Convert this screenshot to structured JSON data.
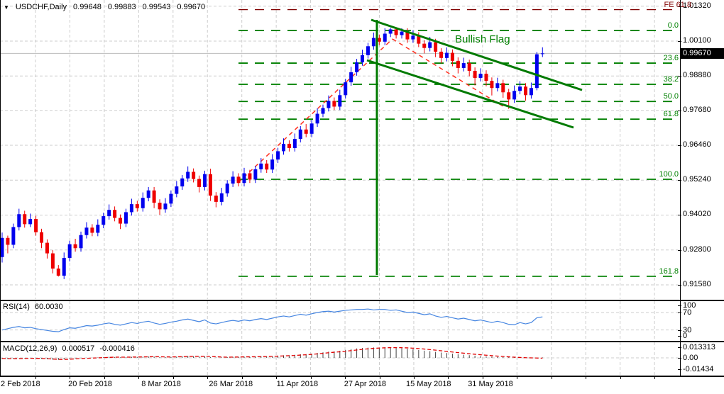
{
  "header": {
    "symbol": "USDCHF,Daily",
    "open": "0.99648",
    "high": "0.99883",
    "low": "0.99543",
    "close": "0.99670"
  },
  "icons": {
    "dropdown": "▼"
  },
  "indicators": {
    "rsi": {
      "label": "RSI(14)",
      "value": "60.0030"
    },
    "macd": {
      "label": "MACD(12,26,9)",
      "value": "0.000517",
      "signal": "-0.000416"
    }
  },
  "annotations": {
    "flag": "Bullish Flag",
    "fe": "FE 61.8"
  },
  "price_axis": {
    "current": "0.99670"
  },
  "colors": {
    "bull": "#0000EE",
    "bear": "#EE0000",
    "grid": "#CDCDCD",
    "fib": "#008000",
    "fe": "#800000",
    "channel": "#007A00",
    "trend": "#FF3020",
    "rsi_line": "#4585E1",
    "macd_bar": "#404040",
    "macd_signal": "#E00000",
    "price_line": "#BBBBBB",
    "tag_bg": "#000000",
    "tag_fg": "#FFFFFF",
    "flag_text": "#008000"
  },
  "chart_data": {
    "type": "candlestick",
    "symbol": "USDCHF",
    "timeframe": "Daily",
    "title": "USDCHF,Daily",
    "current_price": 0.9967,
    "price_axis_ticks": [
      {
        "label": "1.01320",
        "value": 1.0132
      },
      {
        "label": "1.00100",
        "value": 1.001
      },
      {
        "label": "0.98880",
        "value": 0.9888
      },
      {
        "label": "0.97680",
        "value": 0.9768
      },
      {
        "label": "0.96460",
        "value": 0.9646
      },
      {
        "label": "0.95240",
        "value": 0.9524
      },
      {
        "label": "0.94020",
        "value": 0.9402
      },
      {
        "label": "0.92800",
        "value": 0.928
      },
      {
        "label": "0.91580",
        "value": 0.9158
      }
    ],
    "time_axis": [
      {
        "label": "2 Feb 2018",
        "index": 0
      },
      {
        "label": "20 Feb 2018",
        "index": 12
      },
      {
        "label": "8 Mar 2018",
        "index": 25
      },
      {
        "label": "26 Mar 2018",
        "index": 37
      },
      {
        "label": "11 Apr 2018",
        "index": 49
      },
      {
        "label": "27 Apr 2018",
        "index": 61
      },
      {
        "label": "15 May 2018",
        "index": 72
      },
      {
        "label": "31 May 2018",
        "index": 83
      }
    ],
    "fib_levels": [
      {
        "label": "FE 61.8",
        "price": 1.012,
        "type": "expansion"
      },
      {
        "label": "0.0",
        "price": 1.0047
      },
      {
        "label": "23.6",
        "price": 0.9933
      },
      {
        "label": "38.2",
        "price": 0.9859
      },
      {
        "label": "50.0",
        "price": 0.9799
      },
      {
        "label": "61.8",
        "price": 0.9737
      },
      {
        "label": "100.0",
        "price": 0.9527
      },
      {
        "label": "161.8",
        "price": 0.9188
      }
    ],
    "candles": [
      [
        0.9255,
        0.9341,
        0.9236,
        0.9322
      ],
      [
        0.9322,
        0.933,
        0.9268,
        0.9298
      ],
      [
        0.9298,
        0.9372,
        0.9286,
        0.936
      ],
      [
        0.936,
        0.9424,
        0.9348,
        0.9405
      ],
      [
        0.9405,
        0.9417,
        0.9358,
        0.937
      ],
      [
        0.937,
        0.9407,
        0.936,
        0.9388
      ],
      [
        0.9388,
        0.9399,
        0.933,
        0.9342
      ],
      [
        0.9342,
        0.9354,
        0.9286,
        0.9305
      ],
      [
        0.9305,
        0.9317,
        0.925,
        0.9268
      ],
      [
        0.9268,
        0.9279,
        0.9198,
        0.9215
      ],
      [
        0.9215,
        0.9227,
        0.9187,
        0.919
      ],
      [
        0.919,
        0.9271,
        0.9178,
        0.9252
      ],
      [
        0.9252,
        0.9312,
        0.924,
        0.93
      ],
      [
        0.93,
        0.9319,
        0.9274,
        0.9286
      ],
      [
        0.9286,
        0.9344,
        0.9274,
        0.9332
      ],
      [
        0.9332,
        0.9377,
        0.932,
        0.9358
      ],
      [
        0.9358,
        0.937,
        0.9328,
        0.934
      ],
      [
        0.934,
        0.9387,
        0.9328,
        0.9368
      ],
      [
        0.9368,
        0.941,
        0.9356,
        0.9398
      ],
      [
        0.9398,
        0.9439,
        0.9386,
        0.942
      ],
      [
        0.942,
        0.9432,
        0.938,
        0.9392
      ],
      [
        0.9392,
        0.9404,
        0.9353,
        0.9372
      ],
      [
        0.9372,
        0.9424,
        0.936,
        0.9412
      ],
      [
        0.9412,
        0.9459,
        0.94,
        0.944
      ],
      [
        0.944,
        0.9452,
        0.9414,
        0.9426
      ],
      [
        0.9426,
        0.9481,
        0.9414,
        0.9462
      ],
      [
        0.9462,
        0.95,
        0.945,
        0.9488
      ],
      [
        0.9488,
        0.95,
        0.9426,
        0.9445
      ],
      [
        0.9445,
        0.9457,
        0.9403,
        0.9422
      ],
      [
        0.9422,
        0.9461,
        0.941,
        0.9442
      ],
      [
        0.9442,
        0.9488,
        0.943,
        0.9476
      ],
      [
        0.9476,
        0.9521,
        0.9464,
        0.9502
      ],
      [
        0.9502,
        0.9542,
        0.949,
        0.953
      ],
      [
        0.953,
        0.9572,
        0.9518,
        0.9553
      ],
      [
        0.9553,
        0.9565,
        0.9516,
        0.9528
      ],
      [
        0.9528,
        0.954,
        0.9481,
        0.95
      ],
      [
        0.95,
        0.9557,
        0.9488,
        0.9545
      ],
      [
        0.9545,
        0.9564,
        0.9451,
        0.947
      ],
      [
        0.947,
        0.9482,
        0.9429,
        0.9448
      ],
      [
        0.9448,
        0.9497,
        0.9436,
        0.9478
      ],
      [
        0.9478,
        0.9524,
        0.9466,
        0.9512
      ],
      [
        0.9512,
        0.9555,
        0.95,
        0.9536
      ],
      [
        0.9536,
        0.9548,
        0.9502,
        0.9514
      ],
      [
        0.9514,
        0.9567,
        0.9502,
        0.9548
      ],
      [
        0.9548,
        0.956,
        0.9514,
        0.9526
      ],
      [
        0.9526,
        0.9574,
        0.9514,
        0.9562
      ],
      [
        0.9562,
        0.9601,
        0.955,
        0.9582
      ],
      [
        0.9582,
        0.9594,
        0.9549,
        0.9561
      ],
      [
        0.9561,
        0.9615,
        0.9549,
        0.9596
      ],
      [
        0.9596,
        0.9637,
        0.9584,
        0.9625
      ],
      [
        0.9625,
        0.967,
        0.9613,
        0.9651
      ],
      [
        0.9651,
        0.9663,
        0.9624,
        0.9636
      ],
      [
        0.9636,
        0.9687,
        0.9624,
        0.9668
      ],
      [
        0.9668,
        0.9713,
        0.9656,
        0.9701
      ],
      [
        0.9701,
        0.972,
        0.9674,
        0.9686
      ],
      [
        0.9686,
        0.9734,
        0.9674,
        0.9722
      ],
      [
        0.9722,
        0.9775,
        0.971,
        0.9756
      ],
      [
        0.9756,
        0.9788,
        0.9744,
        0.9776
      ],
      [
        0.9776,
        0.982,
        0.9764,
        0.9801
      ],
      [
        0.9801,
        0.9813,
        0.9769,
        0.9781
      ],
      [
        0.9781,
        0.984,
        0.9769,
        0.9821
      ],
      [
        0.9821,
        0.9878,
        0.9809,
        0.9866
      ],
      [
        0.9866,
        0.992,
        0.9854,
        0.9901
      ],
      [
        0.9901,
        0.9948,
        0.9889,
        0.9936
      ],
      [
        0.9936,
        0.998,
        0.9924,
        0.9961
      ],
      [
        0.9961,
        1.0004,
        0.9949,
        0.9992
      ],
      [
        0.9992,
        1.004,
        0.998,
        1.0021
      ],
      [
        1.0021,
        1.0033,
        0.9996,
        1.0008
      ],
      [
        1.0008,
        1.0055,
        0.9996,
        1.0036
      ],
      [
        1.0036,
        1.0056,
        1.0024,
        1.0051
      ],
      [
        1.0051,
        1.0056,
        1.0019,
        1.0031
      ],
      [
        1.0031,
        1.0055,
        1.0019,
        1.0043
      ],
      [
        1.0043,
        1.0055,
        1.0004,
        1.0016
      ],
      [
        1.0016,
        1.0048,
        1.0004,
        1.0029
      ],
      [
        1.0029,
        1.0041,
        0.9989,
        1.0001
      ],
      [
        1.0001,
        1.0013,
        0.9967,
        0.9986
      ],
      [
        0.9986,
        1.0025,
        0.9974,
        1.0006
      ],
      [
        1.0006,
        1.0018,
        0.9954,
        0.9973
      ],
      [
        0.9973,
        0.9985,
        0.9932,
        0.9951
      ],
      [
        0.9951,
        0.9988,
        0.9939,
        0.9969
      ],
      [
        0.9969,
        0.9981,
        0.9922,
        0.9941
      ],
      [
        0.9941,
        0.9953,
        0.9897,
        0.9916
      ],
      [
        0.9916,
        0.9952,
        0.9904,
        0.9933
      ],
      [
        0.9933,
        0.9945,
        0.9887,
        0.9906
      ],
      [
        0.9906,
        0.9918,
        0.9855,
        0.9881
      ],
      [
        0.9881,
        0.9915,
        0.9869,
        0.9896
      ],
      [
        0.9896,
        0.9908,
        0.9852,
        0.9871
      ],
      [
        0.9871,
        0.9883,
        0.982,
        0.9846
      ],
      [
        0.9846,
        0.9882,
        0.9834,
        0.9863
      ],
      [
        0.9863,
        0.9875,
        0.9812,
        0.9831
      ],
      [
        0.9831,
        0.9843,
        0.9773,
        0.9806
      ],
      [
        0.9806,
        0.9855,
        0.9794,
        0.9836
      ],
      [
        0.9836,
        0.987,
        0.9824,
        0.9851
      ],
      [
        0.9851,
        0.9863,
        0.9802,
        0.9821
      ],
      [
        0.9821,
        0.9865,
        0.9809,
        0.9846
      ],
      [
        0.9846,
        0.9972,
        0.9838,
        0.9964
      ],
      [
        0.99648,
        0.99883,
        0.99543,
        0.9967
      ]
    ],
    "rsi": {
      "period": 14,
      "current": 60.003,
      "overbought": 70,
      "oversold": 30,
      "axis": [
        {
          "label": "100",
          "value": 100
        },
        {
          "label": "70",
          "value": 70
        },
        {
          "label": "30",
          "value": 30
        },
        {
          "label": "0",
          "value": 0
        }
      ],
      "values": [
        30,
        33,
        36,
        38,
        35,
        36,
        33,
        31,
        29,
        27,
        26,
        31,
        35,
        34,
        37,
        40,
        39,
        41,
        44,
        46,
        43,
        41,
        44,
        47,
        45,
        48,
        50,
        46,
        43,
        45,
        48,
        50,
        53,
        55,
        52,
        49,
        53,
        46,
        44,
        47,
        50,
        52,
        50,
        53,
        51,
        54,
        56,
        54,
        57,
        60,
        62,
        60,
        63,
        66,
        64,
        67,
        70,
        72,
        73,
        71,
        73,
        75,
        76,
        77,
        77,
        78,
        76,
        77,
        77,
        75,
        76,
        73,
        70,
        71,
        68,
        65,
        67,
        62,
        59,
        61,
        58,
        55,
        57,
        54,
        51,
        53,
        50,
        47,
        50,
        47,
        43,
        42,
        47,
        44,
        47,
        58,
        60
      ]
    },
    "macd": {
      "params": "12,26,9",
      "current": 0.000517,
      "signal_current": -0.000416,
      "axis": [
        {
          "label": "0.013313",
          "value": 0.013313
        },
        {
          "label": "0.00",
          "value": 0
        },
        {
          "label": "-0.01434",
          "value": -0.01434
        }
      ],
      "histogram": [
        -0.0012,
        -0.0016,
        -0.001,
        -0.0004,
        -0.0006,
        -0.0003,
        -0.0007,
        -0.0012,
        -0.0018,
        -0.0024,
        -0.0026,
        -0.0018,
        -0.0011,
        -0.0009,
        -0.0004,
        0.0001,
        0.0002,
        0.0005,
        0.0009,
        0.0013,
        0.0011,
        0.0007,
        0.0009,
        0.0013,
        0.0012,
        0.0015,
        0.0019,
        0.0016,
        0.001,
        0.0009,
        0.0012,
        0.0016,
        0.0021,
        0.0025,
        0.0022,
        0.0017,
        0.002,
        0.0011,
        0.0005,
        0.0006,
        0.001,
        0.0014,
        0.0013,
        0.0016,
        0.0013,
        0.0017,
        0.0021,
        0.0019,
        0.0023,
        0.0028,
        0.0033,
        0.0034,
        0.0039,
        0.0046,
        0.0048,
        0.0054,
        0.0063,
        0.0071,
        0.008,
        0.0083,
        0.0091,
        0.0102,
        0.0112,
        0.0121,
        0.0127,
        0.0131,
        0.0133,
        0.0132,
        0.0133,
        0.0132,
        0.0128,
        0.0124,
        0.0116,
        0.011,
        0.0101,
        0.0092,
        0.0086,
        0.0077,
        0.0068,
        0.0062,
        0.0054,
        0.0046,
        0.004,
        0.0034,
        0.0028,
        0.0024,
        0.002,
        0.0016,
        0.0013,
        0.001,
        0.0007,
        0.0005,
        0.0004,
        0.0003,
        0.0002,
        0.0004,
        0.000517
      ],
      "signal": [
        -0.0008,
        -0.001,
        -0.0012,
        -0.001,
        -0.0008,
        -0.0006,
        -0.0006,
        -0.0008,
        -0.0011,
        -0.0015,
        -0.0019,
        -0.002,
        -0.0017,
        -0.0013,
        -0.0009,
        -0.0006,
        -0.0003,
        0.0,
        0.0003,
        0.0006,
        0.0009,
        0.0009,
        0.0009,
        0.001,
        0.0011,
        0.0012,
        0.0014,
        0.0015,
        0.0014,
        0.0012,
        0.0012,
        0.0013,
        0.0015,
        0.0018,
        0.002,
        0.002,
        0.002,
        0.0018,
        0.0014,
        0.0011,
        0.0009,
        0.001,
        0.0011,
        0.0013,
        0.0013,
        0.0014,
        0.0016,
        0.0017,
        0.0019,
        0.0022,
        0.0025,
        0.0028,
        0.0031,
        0.0036,
        0.004,
        0.0045,
        0.0051,
        0.0058,
        0.0066,
        0.0072,
        0.0078,
        0.0085,
        0.0093,
        0.0101,
        0.0109,
        0.0116,
        0.0122,
        0.0126,
        0.0129,
        0.0131,
        0.0131,
        0.013,
        0.0128,
        0.0124,
        0.0119,
        0.0113,
        0.0106,
        0.0099,
        0.0091,
        0.0083,
        0.0075,
        0.0067,
        0.006,
        0.0053,
        0.0046,
        0.004,
        0.0034,
        0.0028,
        0.0023,
        0.0018,
        0.0013,
        0.0009,
        0.0005,
        0.0002,
        0.0,
        -0.0002,
        -0.000416
      ]
    },
    "drawings": {
      "flag_channel": {
        "upper": [
          523,
          28,
          820,
          127
        ],
        "lower": [
          517,
          85,
          808,
          180
        ],
        "vertical": [
          531,
          28,
          531,
          388
        ]
      },
      "trendline": [
        [
          335,
          258,
          553,
          55
        ],
        [
          553,
          55,
          712,
          152
        ]
      ],
      "flag_label_pos": [
        641,
        47
      ]
    }
  }
}
